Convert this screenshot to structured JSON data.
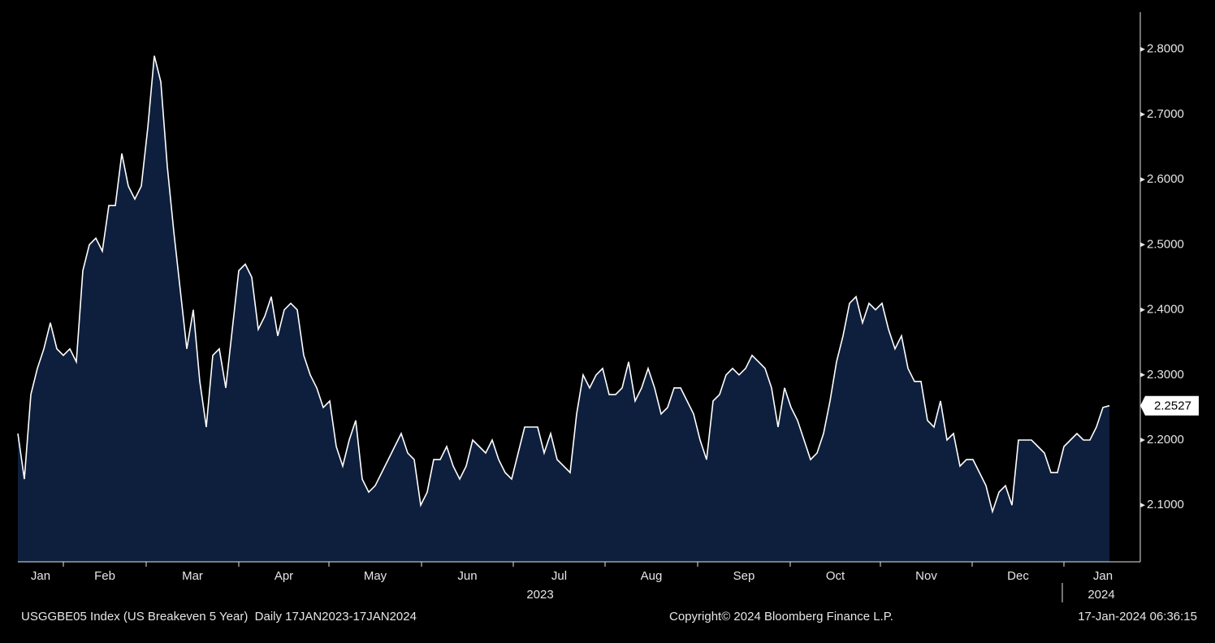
{
  "chart_data": {
    "type": "area",
    "series": [
      {
        "name": "USGGBE05 Index",
        "color": "#ffffff",
        "fill": "#0e1f3d",
        "values": [
          2.21,
          2.14,
          2.27,
          2.31,
          2.34,
          2.38,
          2.34,
          2.33,
          2.34,
          2.32,
          2.46,
          2.5,
          2.51,
          2.49,
          2.56,
          2.56,
          2.64,
          2.59,
          2.57,
          2.59,
          2.68,
          2.79,
          2.75,
          2.62,
          2.52,
          2.43,
          2.34,
          2.4,
          2.29,
          2.22,
          2.33,
          2.34,
          2.28,
          2.37,
          2.46,
          2.47,
          2.45,
          2.37,
          2.39,
          2.42,
          2.36,
          2.4,
          2.41,
          2.4,
          2.33,
          2.3,
          2.28,
          2.25,
          2.26,
          2.19,
          2.16,
          2.2,
          2.23,
          2.14,
          2.12,
          2.13,
          2.15,
          2.17,
          2.19,
          2.21,
          2.18,
          2.17,
          2.1,
          2.12,
          2.17,
          2.17,
          2.19,
          2.16,
          2.14,
          2.16,
          2.2,
          2.19,
          2.18,
          2.2,
          2.17,
          2.15,
          2.14,
          2.18,
          2.22,
          2.22,
          2.22,
          2.18,
          2.21,
          2.17,
          2.16,
          2.15,
          2.24,
          2.3,
          2.28,
          2.3,
          2.31,
          2.27,
          2.27,
          2.28,
          2.32,
          2.26,
          2.28,
          2.31,
          2.28,
          2.24,
          2.25,
          2.28,
          2.28,
          2.26,
          2.24,
          2.2,
          2.17,
          2.26,
          2.27,
          2.3,
          2.31,
          2.3,
          2.31,
          2.33,
          2.32,
          2.31,
          2.28,
          2.22,
          2.28,
          2.25,
          2.23,
          2.2,
          2.17,
          2.18,
          2.21,
          2.26,
          2.32,
          2.36,
          2.41,
          2.42,
          2.38,
          2.41,
          2.4,
          2.41,
          2.37,
          2.34,
          2.36,
          2.31,
          2.29,
          2.29,
          2.23,
          2.22,
          2.26,
          2.2,
          2.21,
          2.16,
          2.17,
          2.17,
          2.15,
          2.13,
          2.09,
          2.12,
          2.13,
          2.1,
          2.2,
          2.2,
          2.2,
          2.19,
          2.18,
          2.15,
          2.15,
          2.19,
          2.2,
          2.21,
          2.2,
          2.2,
          2.22,
          2.25,
          2.2527
        ]
      }
    ],
    "months": [
      "Jan",
      "Feb",
      "Mar",
      "Apr",
      "May",
      "Jun",
      "Jul",
      "Aug",
      "Sep",
      "Oct",
      "Nov",
      "Dec",
      "Jan"
    ],
    "years": [
      "2023",
      "2024"
    ],
    "ylim": [
      2.013,
      2.857
    ],
    "yticks": [
      {
        "value": 2.1,
        "label": "2.1000"
      },
      {
        "value": 2.2,
        "label": "2.2000"
      },
      {
        "value": 2.3,
        "label": "2.3000"
      },
      {
        "value": 2.4,
        "label": "2.4000"
      },
      {
        "value": 2.5,
        "label": "2.5000"
      },
      {
        "value": 2.6,
        "label": "2.6000"
      },
      {
        "value": 2.7,
        "label": "2.7000"
      },
      {
        "value": 2.8,
        "label": "2.8000"
      }
    ],
    "footer": {
      "left": "USGGBE05 Index (US Breakeven 5 Year)  Daily 17JAN2023-17JAN2024",
      "center": "Copyright© 2024 Bloomberg Finance L.P.",
      "right": "17-Jan-2024 06:36:15"
    }
  }
}
